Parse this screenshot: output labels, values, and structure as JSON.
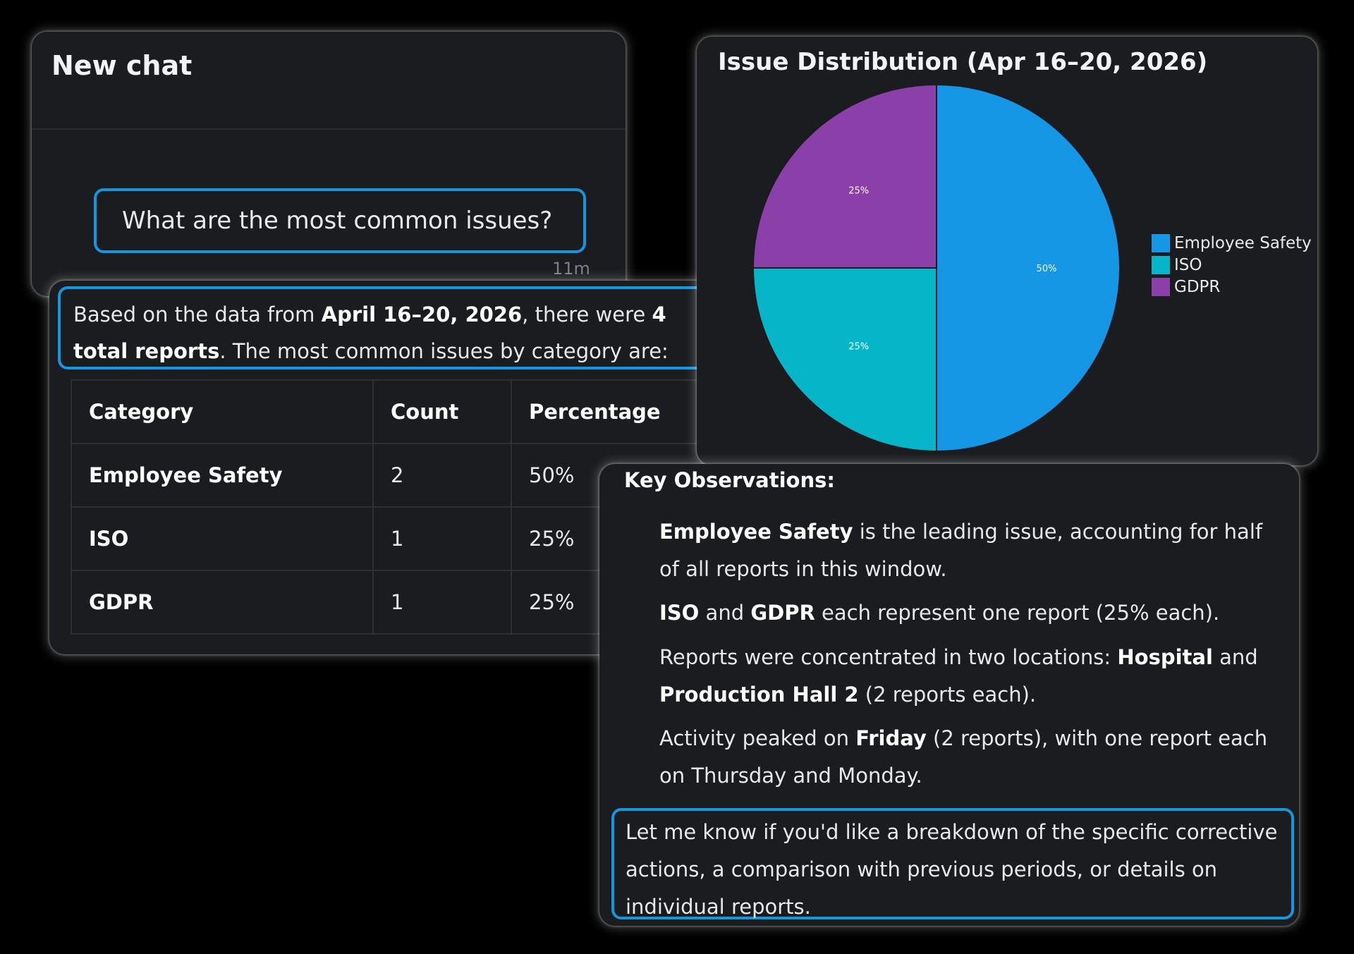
{
  "chat": {
    "title": "New chat",
    "user_message": "What are the most common issues?",
    "timestamp": "11m"
  },
  "summary": {
    "t1": "Based on the data from ",
    "b1": "April 16–20, 2026",
    "t2": ", there were ",
    "b2": "4 total reports",
    "t3": ". The most common issues by category are:"
  },
  "table": {
    "headers": [
      "Category",
      "Count",
      "Percentage"
    ],
    "rows": [
      {
        "category": "Employee Safety",
        "count": "2",
        "percentage": "50%"
      },
      {
        "category": "ISO",
        "count": "1",
        "percentage": "25%"
      },
      {
        "category": "GDPR",
        "count": "1",
        "percentage": "25%"
      }
    ]
  },
  "chart_data": {
    "type": "pie",
    "title": "Issue Distribution (Apr 16–20, 2026)",
    "categories": [
      "Employee Safety",
      "ISO",
      "GDPR"
    ],
    "values": [
      50,
      25,
      25
    ],
    "labels": [
      "50%",
      "25%",
      "25%"
    ],
    "colors": [
      "#1597e5",
      "#06b6c8",
      "#8b3fa8"
    ],
    "legend": "right"
  },
  "observations": {
    "title": "Key Observations:",
    "o1": {
      "b1": "Employee Safety",
      "t1": " is the leading issue, accounting for half of all reports in this window."
    },
    "o2": {
      "b1": "ISO",
      "t1": " and ",
      "b2": "GDPR",
      "t2": " each represent one report (25% each)."
    },
    "o3": {
      "t1": "Reports were concentrated in two locations: ",
      "b1": "Hospital",
      "t2": " and ",
      "b2": "Production Hall 2",
      "t3": " (2 reports each)."
    },
    "o4": {
      "t1": "Activity peaked on ",
      "b1": "Friday",
      "t2": " (2 reports), with one report each on Thursday and Monday."
    },
    "closing": "Let me know if you'd like a breakdown of the specific corrective actions, a comparison with previous periods, or details on individual reports."
  },
  "colors": {
    "background": "#000000",
    "panel": "#1b1c20",
    "highlight": "#1497e0"
  }
}
